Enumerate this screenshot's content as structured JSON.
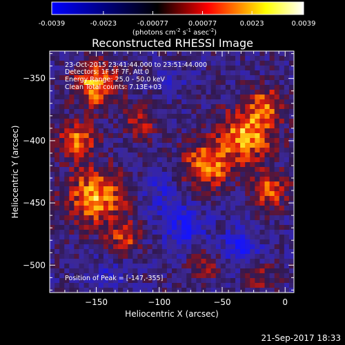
{
  "colorbar": {
    "tick_labels": [
      "-0.0039",
      "-0.0023",
      "-0.00077",
      "0.00077",
      "0.0023",
      "0.0039"
    ],
    "unit_label": "(photons cm",
    "unit_sup1": "-2",
    "unit_mid": " s",
    "unit_sup2": "-1",
    "unit_end": " asec",
    "unit_sup3": "-2",
    "unit_close": ")",
    "colors": [
      "#0000ff",
      "#000000",
      "#ff0000",
      "#ffff00",
      "#ffffff"
    ]
  },
  "annotations": {
    "time_range": "23-Oct-2015 23:41:44.000 to 23:51:44.000",
    "detectors": "Detectors: 1F 5F 7F, Att 0",
    "energy": "Energy Range: 25.0 - 50.0 keV",
    "algorithm": "Clean      Total counts: 7.13E+03",
    "peak": "Position of Peak = [-147,-355]"
  },
  "footer_timestamp": "21-Sep-2017 18:33",
  "chart_data": {
    "type": "heatmap",
    "title": "Reconstructed RHESSI Image",
    "xlabel": "Heliocentric X (arcsec)",
    "ylabel": "Heliocentric Y (arcsec)",
    "xlim": [
      -187,
      7
    ],
    "ylim": [
      -522,
      -328
    ],
    "x_ticks": [
      -150,
      -100,
      -50,
      0
    ],
    "y_ticks": [
      -350,
      -400,
      -450,
      -500
    ],
    "x_tick_labels": [
      "−150",
      "−100",
      "−50",
      "0"
    ],
    "y_tick_labels": [
      "−350",
      "−400",
      "−450",
      "−500"
    ],
    "value_range": [
      -0.0039,
      0.0039
    ],
    "grid": false,
    "sources": [
      {
        "x": -150,
        "y": -355,
        "sigma": 12,
        "amp": 0.0039
      },
      {
        "x": -165,
        "y": -400,
        "sigma": 10,
        "amp": 0.0032
      },
      {
        "x": -150,
        "y": -445,
        "sigma": 16,
        "amp": 0.0037
      },
      {
        "x": -30,
        "y": -395,
        "sigma": 15,
        "amp": 0.0038
      },
      {
        "x": -62,
        "y": -420,
        "sigma": 13,
        "amp": 0.0036
      },
      {
        "x": -12,
        "y": -440,
        "sigma": 10,
        "amp": 0.0028
      },
      {
        "x": -15,
        "y": -370,
        "sigma": 9,
        "amp": 0.0026
      },
      {
        "x": -115,
        "y": -385,
        "sigma": 10,
        "amp": 0.0018
      },
      {
        "x": -128,
        "y": -478,
        "sigma": 9,
        "amp": 0.0024
      },
      {
        "x": -65,
        "y": -500,
        "sigma": 9,
        "amp": 0.0016
      },
      {
        "x": -20,
        "y": -510,
        "sigma": 9,
        "amp": 0.0015
      },
      {
        "x": -80,
        "y": -470,
        "sigma": 13,
        "amp": -0.002
      },
      {
        "x": -35,
        "y": -485,
        "sigma": 10,
        "amp": -0.0026
      },
      {
        "x": -100,
        "y": -440,
        "sigma": 12,
        "amp": -0.0012
      },
      {
        "x": -140,
        "y": -505,
        "sigma": 10,
        "amp": -0.0012
      },
      {
        "x": -90,
        "y": -350,
        "sigma": 10,
        "amp": -0.0008
      }
    ],
    "background": -0.0011,
    "noise_amplitude": 0.0011
  }
}
